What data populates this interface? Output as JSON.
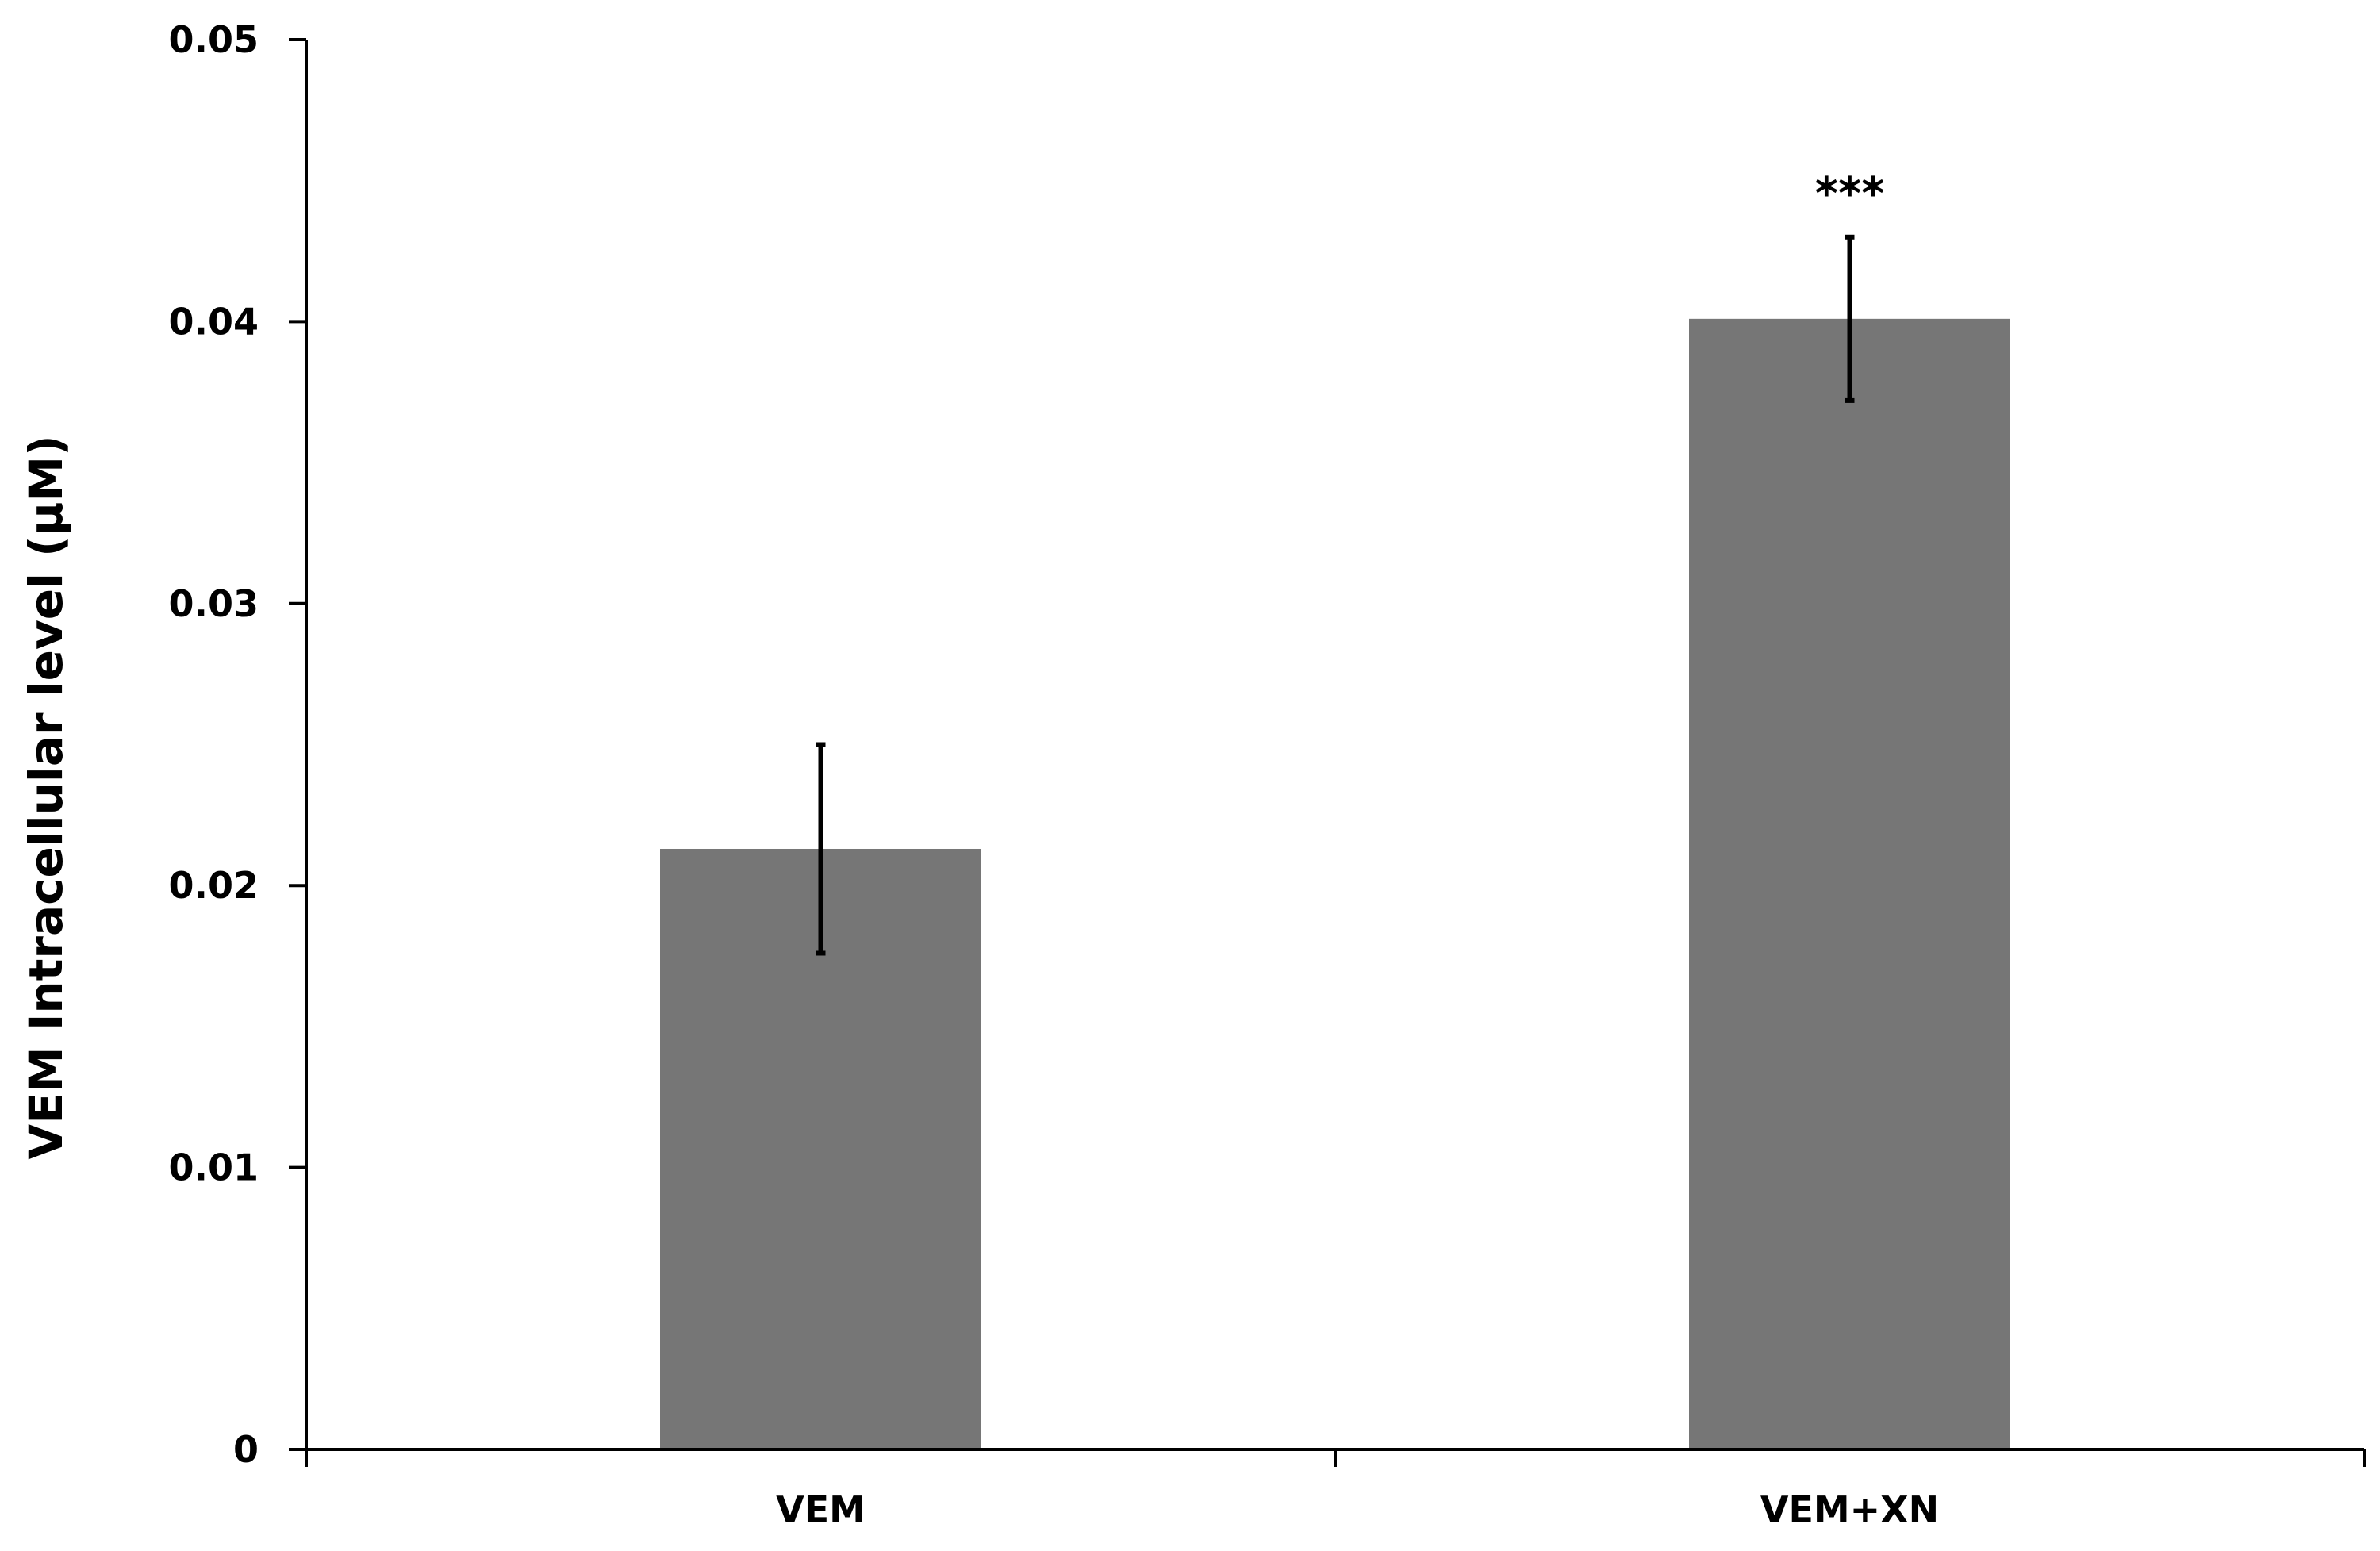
{
  "chart_data": {
    "type": "bar",
    "title": "",
    "xlabel": "",
    "ylabel": "VEM Intracellular level (μM)",
    "categories": [
      "VEM",
      "VEM+XN"
    ],
    "values": [
      0.0213,
      0.0401
    ],
    "error": [
      0.0037,
      0.0029
    ],
    "annotations": [
      "",
      "***"
    ],
    "ylim": [
      0,
      0.05
    ],
    "yticks": [
      "0",
      "0.01",
      "0.02",
      "0.03",
      "0.04",
      "0.05"
    ],
    "grid": false,
    "legend": "none",
    "colors": {
      "bar": "#767676",
      "axis": "#000000",
      "error_bar": "#000000"
    }
  }
}
